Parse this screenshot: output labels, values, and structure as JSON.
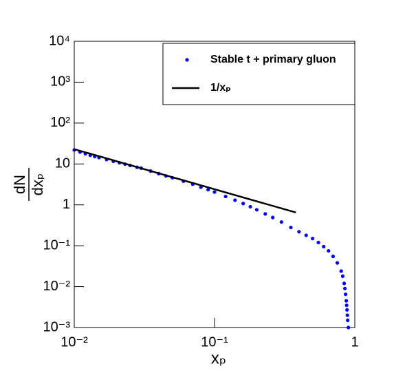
{
  "chart_data": {
    "type": "scatter",
    "xlabel": "xₚ",
    "ylabel": {
      "numerator": "dN",
      "denominator": "dxₚ"
    },
    "xlog": true,
    "ylog": true,
    "xlim": [
      0.01,
      1
    ],
    "ylim": [
      0.001,
      10000
    ],
    "xticks": [
      {
        "value": 0.01,
        "label": "10⁻²"
      },
      {
        "value": 0.1,
        "label": "10⁻¹"
      },
      1
    ],
    "yticks": [
      {
        "value": 0.001,
        "label": "10⁻³"
      },
      {
        "value": 0.01,
        "label": "10⁻²"
      },
      {
        "value": 0.1,
        "label": "10⁻¹"
      },
      1,
      10,
      {
        "value": 100,
        "label": "10²"
      },
      {
        "value": 1000,
        "label": "10³"
      },
      {
        "value": 10000,
        "label": "10⁴"
      }
    ],
    "legend": "upper right",
    "series": [
      {
        "name": "Stable t + primary gluon",
        "color": "#0000ff",
        "style": "points",
        "x": [
          0.01,
          0.011,
          0.012,
          0.013,
          0.014,
          0.015,
          0.017,
          0.019,
          0.021,
          0.023,
          0.025,
          0.028,
          0.03,
          0.035,
          0.04,
          0.045,
          0.05,
          0.06,
          0.07,
          0.08,
          0.09,
          0.1,
          0.12,
          0.14,
          0.16,
          0.18,
          0.2,
          0.23,
          0.26,
          0.3,
          0.35,
          0.4,
          0.45,
          0.5,
          0.55,
          0.6,
          0.65,
          0.7,
          0.75,
          0.8,
          0.82,
          0.84,
          0.85,
          0.86,
          0.87,
          0.875,
          0.88,
          0.885,
          0.89,
          0.9
        ],
        "values": [
          22,
          19.5,
          17.8,
          16.3,
          15.2,
          14.3,
          12.8,
          11.6,
          10.7,
          9.9,
          9.2,
          8.3,
          7.9,
          6.7,
          5.8,
          5.1,
          4.6,
          3.8,
          3.2,
          2.7,
          2.35,
          2.05,
          1.6,
          1.3,
          1.08,
          0.9,
          0.76,
          0.6,
          0.49,
          0.38,
          0.28,
          0.22,
          0.18,
          0.15,
          0.12,
          0.095,
          0.075,
          0.055,
          0.038,
          0.024,
          0.018,
          0.012,
          0.009,
          0.0065,
          0.0045,
          0.0035,
          0.0027,
          0.002,
          0.0015,
          0.001
        ]
      },
      {
        "name": "1/xₚ",
        "color": "#000000",
        "style": "line",
        "x": [
          0.01,
          0.38
        ],
        "values": [
          23,
          0.65
        ]
      }
    ]
  }
}
